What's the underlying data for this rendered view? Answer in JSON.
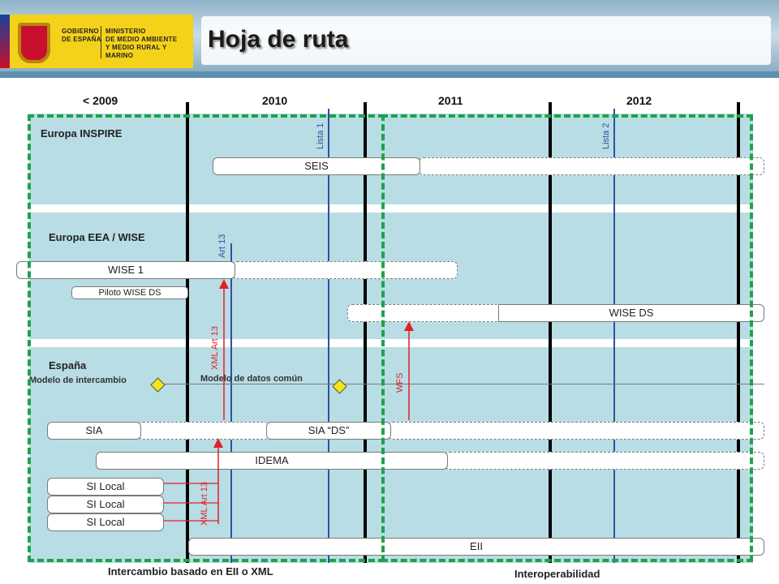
{
  "header": {
    "logo": {
      "line_1": "GOBIERNO\nDE ESPAÑA",
      "line_2": "MINISTERIO\nDE MEDIO AMBIENTE\nY MEDIO RURAL Y MARINO"
    },
    "title": "Hoja de ruta"
  },
  "timeline": {
    "years": [
      "< 2009",
      "2010",
      "2011",
      "2012"
    ]
  },
  "rows": {
    "europa_inspire": "Europa INSPIRE",
    "europa_eea_wise": "Europa EEA / WISE",
    "espana": "España"
  },
  "milestones": {
    "lista_1": "Lista 1",
    "lista_2": "Lista 2",
    "art_13": "Art 13"
  },
  "bars": {
    "seis": "SEIS",
    "wise_1": "WISE 1",
    "piloto_wise_ds": "Piloto WISE DS",
    "wise_ds": "WISE DS",
    "sia": "SIA",
    "sia_ds": "SIA “DS”",
    "idema": "IDEMA",
    "si_local_1": "SI Local",
    "si_local_2": "SI Local",
    "si_local_3": "SI Local",
    "eii": "EII"
  },
  "annotations": {
    "xml_art13_upper": "XML Art 13",
    "xml_art13_lower": "XML Art 13",
    "wfs": "WFS",
    "modelo_intercambio": "Modelo de intercambio",
    "modelo_datos_comun": "Modelo de datos común"
  },
  "footer": {
    "left": "Intercambio basado en EII o XML",
    "right": "Interoperabilidad"
  },
  "colors": {
    "band": "#b9dde4",
    "green_dashed": "#1fa24a",
    "arrow_red": "#e0202a",
    "milestone_blue": "#3050a0"
  }
}
